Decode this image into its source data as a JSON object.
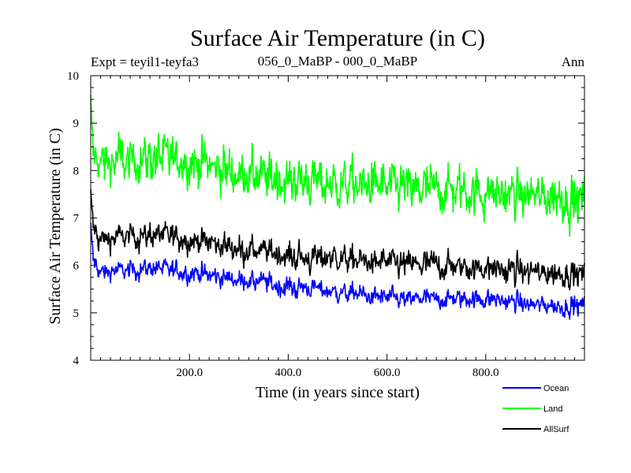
{
  "chart_data": {
    "type": "line",
    "title": "Surface Air Temperature (in C)",
    "subtitle_left": "Expt = teyil1-teyfa3",
    "subtitle_center": "056_0_MaBP - 000_0_MaBP",
    "subtitle_right": "Ann",
    "xlabel": "Time (in years since start)",
    "ylabel": "Surface Air Temperature (in C)",
    "xlim": [
      0,
      1000
    ],
    "ylim": [
      4,
      10
    ],
    "x_ticks": [
      200,
      400,
      600,
      800
    ],
    "x_tick_labels": [
      "200.0",
      "400.0",
      "600.0",
      "800.0"
    ],
    "y_ticks": [
      4,
      5,
      6,
      7,
      8,
      9,
      10
    ],
    "y_tick_labels": [
      "4",
      "5",
      "6",
      "7",
      "8",
      "9",
      "10"
    ],
    "sampling": "annual values, years 0-1000 (noisy series; mean trend shown at anchor years with interannual amplitude)",
    "series": [
      {
        "name": "Ocean",
        "color": "#0000ff",
        "trend_x": [
          0,
          5,
          15,
          30,
          60,
          120,
          200,
          300,
          350,
          400,
          450,
          500,
          600,
          700,
          800,
          900,
          950,
          1000
        ],
        "trend_y": [
          6.9,
          6.15,
          5.9,
          5.85,
          5.9,
          5.95,
          5.85,
          5.7,
          5.65,
          5.55,
          5.5,
          5.45,
          5.3,
          5.3,
          5.3,
          5.15,
          5.15,
          5.15
        ],
        "amplitude": 0.12
      },
      {
        "name": "Land",
        "color": "#00ff00",
        "trend_x": [
          0,
          5,
          15,
          30,
          60,
          120,
          200,
          300,
          350,
          400,
          450,
          500,
          600,
          700,
          800,
          900,
          950,
          1000
        ],
        "trend_y": [
          9.6,
          8.3,
          8.2,
          8.15,
          8.2,
          8.3,
          8.2,
          7.95,
          7.85,
          7.8,
          7.75,
          7.75,
          7.65,
          7.6,
          7.55,
          7.45,
          7.45,
          7.35
        ],
        "amplitude": 0.28
      },
      {
        "name": "AllSurf",
        "color": "#000000",
        "trend_x": [
          0,
          5,
          15,
          30,
          60,
          120,
          200,
          300,
          350,
          400,
          450,
          500,
          600,
          700,
          800,
          900,
          950,
          1000
        ],
        "trend_y": [
          7.6,
          6.8,
          6.6,
          6.55,
          6.6,
          6.65,
          6.55,
          6.35,
          6.3,
          6.2,
          6.15,
          6.15,
          6.05,
          6.0,
          5.95,
          5.85,
          5.85,
          5.8
        ],
        "amplitude": 0.16
      }
    ],
    "legend": [
      "Ocean",
      "Land",
      "AllSurf"
    ],
    "legend_position": "bottom-right"
  }
}
